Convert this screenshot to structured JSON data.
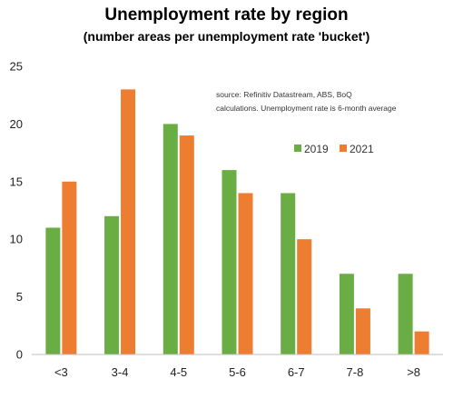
{
  "chart_data": {
    "type": "bar",
    "title": "Unemployment rate by region",
    "subtitle": "(number areas per unemployment rate 'bucket')",
    "categories": [
      "<3",
      "3-4",
      "4-5",
      "5-6",
      "6-7",
      "7-8",
      ">8"
    ],
    "series": [
      {
        "name": "2019",
        "color": "#6aad45",
        "values": [
          11,
          12,
          20,
          16,
          14,
          7,
          7
        ]
      },
      {
        "name": "2021",
        "color": "#ed7d31",
        "values": [
          15,
          23,
          19,
          14,
          10,
          4,
          2
        ]
      }
    ],
    "ylim": [
      0,
      25
    ],
    "yticks": [
      0,
      5,
      10,
      15,
      20,
      25
    ],
    "grid": false,
    "legend_position": "top-right",
    "annotation": [
      "source:  Refinitiv Datastream, ABS, BoQ",
      "calculations. Unemployment rate is 6-month average"
    ]
  }
}
